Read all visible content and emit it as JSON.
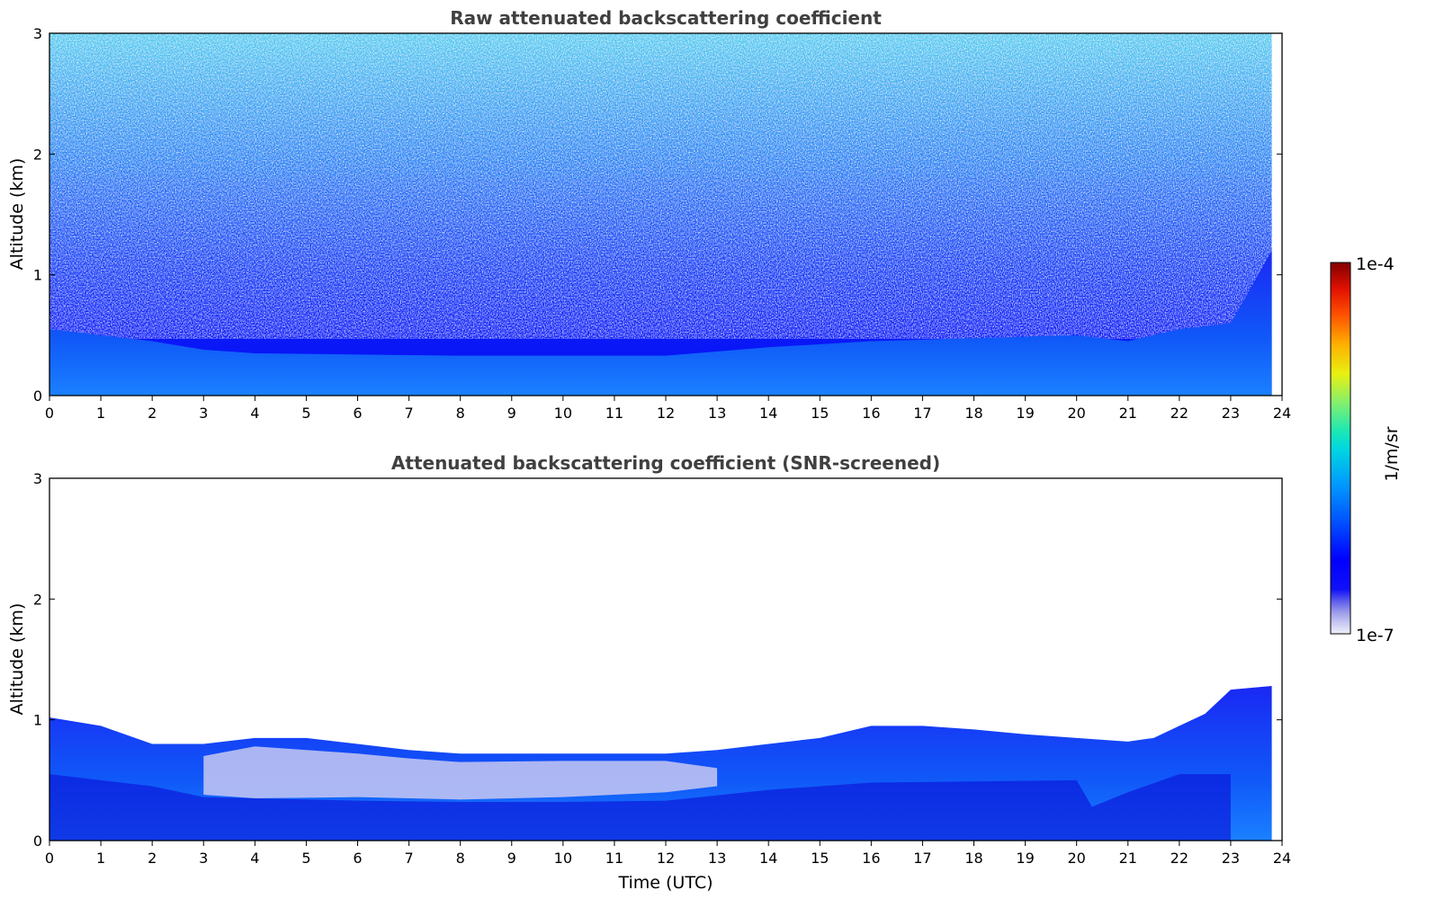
{
  "chart_data": [
    {
      "type": "heatmap",
      "title": "Raw attenuated backscattering coefficient",
      "xlabel": "",
      "ylabel": "Altitude (km)",
      "xlim": [
        0,
        24
      ],
      "ylim": [
        0,
        3
      ],
      "xticks": [
        "0",
        "1",
        "2",
        "3",
        "4",
        "5",
        "6",
        "7",
        "8",
        "9",
        "10",
        "11",
        "12",
        "13",
        "14",
        "15",
        "16",
        "17",
        "18",
        "19",
        "20",
        "21",
        "22",
        "23",
        "24"
      ],
      "yticks": [
        "0",
        "1",
        "2",
        "3"
      ],
      "data_end_hour": 23.8,
      "layer_top_km": [
        [
          0,
          0.55
        ],
        [
          2,
          0.45
        ],
        [
          3,
          0.38
        ],
        [
          4,
          0.35
        ],
        [
          6,
          0.34
        ],
        [
          8,
          0.33
        ],
        [
          9,
          0.33
        ],
        [
          12,
          0.33
        ],
        [
          14,
          0.4
        ],
        [
          16,
          0.45
        ],
        [
          20,
          0.5
        ],
        [
          21,
          0.45
        ],
        [
          22,
          0.55
        ],
        [
          23,
          0.6
        ],
        [
          23.8,
          1.2
        ]
      ],
      "noise_level": "high"
    },
    {
      "type": "heatmap",
      "title": "Attenuated backscattering coefficient (SNR-screened)",
      "xlabel": "Time (UTC)",
      "ylabel": "Altitude (km)",
      "xlim": [
        0,
        24
      ],
      "ylim": [
        0,
        3
      ],
      "xticks": [
        "0",
        "1",
        "2",
        "3",
        "4",
        "5",
        "6",
        "7",
        "8",
        "9",
        "10",
        "11",
        "12",
        "13",
        "14",
        "15",
        "16",
        "17",
        "18",
        "19",
        "20",
        "21",
        "22",
        "23",
        "24"
      ],
      "yticks": [
        "0",
        "1",
        "2",
        "3"
      ],
      "data_end_hour": 23.8,
      "signal_top_km": [
        [
          0,
          1.02
        ],
        [
          1,
          0.95
        ],
        [
          2,
          0.8
        ],
        [
          3,
          0.8
        ],
        [
          4,
          0.85
        ],
        [
          5,
          0.85
        ],
        [
          6,
          0.8
        ],
        [
          7,
          0.75
        ],
        [
          8,
          0.72
        ],
        [
          9,
          0.72
        ],
        [
          10,
          0.72
        ],
        [
          12,
          0.72
        ],
        [
          13,
          0.75
        ],
        [
          14,
          0.8
        ],
        [
          15,
          0.85
        ],
        [
          16,
          0.95
        ],
        [
          17,
          0.95
        ],
        [
          18,
          0.92
        ],
        [
          19,
          0.88
        ],
        [
          20,
          0.85
        ],
        [
          21,
          0.82
        ],
        [
          21.5,
          0.85
        ],
        [
          22,
          0.95
        ],
        [
          22.5,
          1.05
        ],
        [
          23,
          1.25
        ],
        [
          23.8,
          1.28
        ]
      ],
      "noise_level": "screened"
    }
  ],
  "colorbar": {
    "label": "1/m/sr",
    "max_label": "1e-4",
    "min_label": "1e-7",
    "colors": [
      "#e8e8f8",
      "#c4c4f0",
      "#9a9ae8",
      "#6a6ae8",
      "#2020f0",
      "#0000ff",
      "#0030ff",
      "#0060ff",
      "#0090ff",
      "#00b8f0",
      "#00d8d0",
      "#30e8a0",
      "#80f070",
      "#c0f040",
      "#f0f000",
      "#ffc000",
      "#ff8800",
      "#ff5000",
      "#f02000",
      "#c00000",
      "#800000"
    ]
  }
}
